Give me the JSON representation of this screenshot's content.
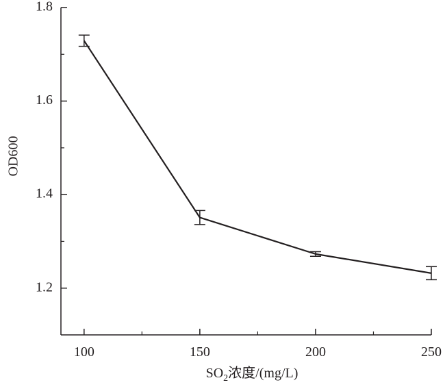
{
  "chart_data": {
    "type": "line",
    "title": "",
    "xlabel": {
      "prefix": "SO",
      "subscript": "2",
      "suffix": "浓度/(mg/L)"
    },
    "ylabel": "OD600",
    "x": [
      100,
      150,
      200,
      250
    ],
    "series": [
      {
        "values": [
          1.729,
          1.351,
          1.273,
          1.232
        ],
        "error": [
          0.012,
          0.015,
          0.005,
          0.014
        ]
      }
    ],
    "xlim": [
      90,
      250
    ],
    "ylim": [
      1.1,
      1.8
    ],
    "xticks": [
      100,
      150,
      200,
      250
    ],
    "xticks_minor": [
      125,
      175,
      225
    ],
    "yticks": [
      1.2,
      1.4,
      1.6,
      1.8
    ],
    "yticks_minor": [
      1.3,
      1.5,
      1.7
    ],
    "ytick_labels": [
      "1.2",
      "1.4",
      "1.6",
      "1.8"
    ],
    "grid": false,
    "colors": {
      "line": "#231f20",
      "axis": "#231f20"
    }
  }
}
